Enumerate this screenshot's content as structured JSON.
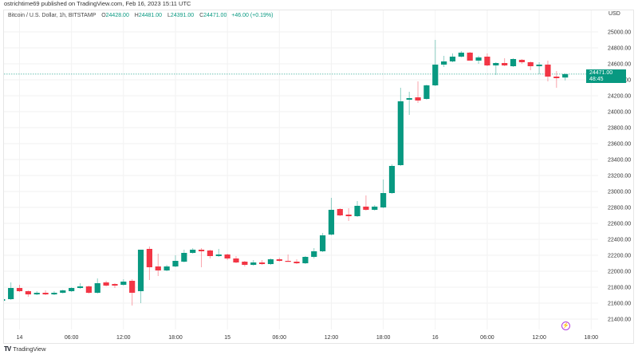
{
  "publisher_line": "ostrichtime69 published on TradingView.com, Feb 16, 2023 15:11 UTC",
  "legend": {
    "symbol": "Bitcoin / U.S. Dollar, 1h, BITSTAMP",
    "open_label": "O",
    "open": "24428.00",
    "high_label": "H",
    "high": "24481.00",
    "low_label": "L",
    "low": "24391.00",
    "close_label": "C",
    "close": "24471.00",
    "change": "+46.00 (+0.19%)"
  },
  "currency": "USD",
  "last_price": {
    "value": "24471.00",
    "countdown": "48:45"
  },
  "footer": {
    "logo": "𝟭𝟳",
    "brand": "TradingView"
  },
  "colors": {
    "up": "#089981",
    "down": "#f23645",
    "grid": "#f2f2f2",
    "alert": "#b33be0"
  },
  "icons": {
    "alert": "lightning-icon",
    "logo": "tradingview-logo"
  },
  "chart_data": {
    "type": "candlestick",
    "title": "Bitcoin / U.S. Dollar, 1h, BITSTAMP",
    "start": "2023-02-13 22:00",
    "interval": "1h",
    "ylim": [
      21400,
      25000
    ],
    "y_ticks": [
      "21400.00",
      "21600.00",
      "21800.00",
      "22000.00",
      "22200.00",
      "22400.00",
      "22600.00",
      "22800.00",
      "23000.00",
      "23200.00",
      "23400.00",
      "23600.00",
      "23800.00",
      "24000.00",
      "24200.00",
      "24400.00",
      "24600.00",
      "24800.00",
      "25000.00"
    ],
    "x_ticks": [
      "14",
      "06:00",
      "12:00",
      "18:00",
      "15",
      "06:00",
      "12:00",
      "18:00",
      "16",
      "06:00",
      "12:00",
      "18:00"
    ],
    "grid": true,
    "ohlc": [
      [
        21630,
        21660,
        21620,
        21650
      ],
      [
        21650,
        21860,
        21640,
        21790
      ],
      [
        21790,
        21830,
        21740,
        21750
      ],
      [
        21750,
        21760,
        21680,
        21710
      ],
      [
        21710,
        21750,
        21700,
        21730
      ],
      [
        21730,
        21760,
        21700,
        21710
      ],
      [
        21710,
        21750,
        21700,
        21730
      ],
      [
        21730,
        21770,
        21720,
        21760
      ],
      [
        21750,
        21800,
        21740,
        21790
      ],
      [
        21790,
        21850,
        21780,
        21810
      ],
      [
        21810,
        21820,
        21720,
        21730
      ],
      [
        21730,
        21910,
        21720,
        21850
      ],
      [
        21860,
        21880,
        21810,
        21820
      ],
      [
        21840,
        21850,
        21790,
        21820
      ],
      [
        21830,
        21900,
        21820,
        21870
      ],
      [
        21880,
        21900,
        21570,
        21730
      ],
      [
        21750,
        22270,
        21600,
        22270
      ],
      [
        22280,
        22310,
        21890,
        22050
      ],
      [
        22060,
        22220,
        21940,
        22010
      ],
      [
        22010,
        22080,
        22000,
        22060
      ],
      [
        22060,
        22200,
        22050,
        22130
      ],
      [
        22120,
        22270,
        22110,
        22230
      ],
      [
        22230,
        22290,
        22220,
        22270
      ],
      [
        22270,
        22290,
        22050,
        22250
      ],
      [
        22260,
        22270,
        22160,
        22190
      ],
      [
        22190,
        22280,
        22180,
        22210
      ],
      [
        22210,
        22220,
        22140,
        22160
      ],
      [
        22160,
        22190,
        22100,
        22110
      ],
      [
        22120,
        22130,
        22060,
        22080
      ],
      [
        22080,
        22140,
        22070,
        22110
      ],
      [
        22110,
        22140,
        22080,
        22090
      ],
      [
        22090,
        22160,
        22080,
        22150
      ],
      [
        22150,
        22170,
        22120,
        22130
      ],
      [
        22130,
        22210,
        22120,
        22120
      ],
      [
        22120,
        22150,
        22090,
        22100
      ],
      [
        22100,
        22190,
        22090,
        22180
      ],
      [
        22180,
        22290,
        22160,
        22250
      ],
      [
        22250,
        22480,
        22240,
        22450
      ],
      [
        22460,
        22920,
        22450,
        22770
      ],
      [
        22780,
        22790,
        22690,
        22700
      ],
      [
        22710,
        22790,
        22630,
        22690
      ],
      [
        22690,
        22880,
        22680,
        22820
      ],
      [
        22810,
        22950,
        22760,
        22770
      ],
      [
        22770,
        22830,
        22760,
        22810
      ],
      [
        22800,
        23150,
        22790,
        22980
      ],
      [
        22980,
        23340,
        22970,
        23320
      ],
      [
        23330,
        24300,
        23320,
        24130
      ],
      [
        24150,
        24250,
        23960,
        24170
      ],
      [
        24180,
        24380,
        24110,
        24140
      ],
      [
        24160,
        24340,
        24150,
        24330
      ],
      [
        24330,
        24900,
        24320,
        24590
      ],
      [
        24590,
        24700,
        24560,
        24630
      ],
      [
        24630,
        24730,
        24620,
        24690
      ],
      [
        24690,
        24760,
        24680,
        24740
      ],
      [
        24740,
        24750,
        24640,
        24640
      ],
      [
        24640,
        24700,
        24600,
        24680
      ],
      [
        24690,
        24730,
        24570,
        24580
      ],
      [
        24580,
        24620,
        24460,
        24610
      ],
      [
        24610,
        24670,
        24570,
        24580
      ],
      [
        24570,
        24670,
        24560,
        24660
      ],
      [
        24650,
        24660,
        24600,
        24620
      ],
      [
        24620,
        24630,
        24520,
        24570
      ],
      [
        24570,
        24620,
        24470,
        24590
      ],
      [
        24590,
        24640,
        24380,
        24440
      ],
      [
        24440,
        24510,
        24300,
        24420
      ],
      [
        24428,
        24481,
        24391,
        24471
      ]
    ],
    "last_price": 24471
  }
}
